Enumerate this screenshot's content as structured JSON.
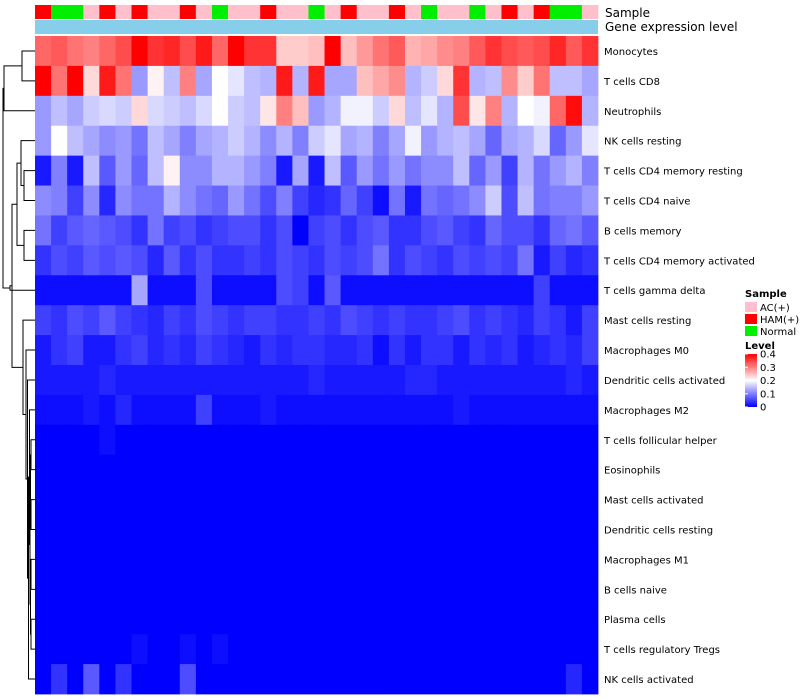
{
  "chart_data": {
    "type": "heatmap",
    "title": "",
    "annotation_labels": {
      "sample": "Sample",
      "gene_expression": "Gene expression level"
    },
    "legend": {
      "sample_title": "Sample",
      "sample_entries": [
        {
          "label": "AC(+)",
          "color": "#ffc0cb"
        },
        {
          "label": "HAM(+)",
          "color": "#ff0000"
        },
        {
          "label": "Normal",
          "color": "#00ee00"
        }
      ],
      "level_title": "Level",
      "level_ticks": [
        "0.4",
        "0.3",
        "0.2",
        "0.1",
        "0"
      ],
      "level_range": [
        0,
        0.4
      ]
    },
    "colors": {
      "low": "#0000ff",
      "mid": "#ffffff",
      "high": "#ff0000",
      "gene_expression_bar": "#87ceeb"
    },
    "sample_groups": [
      "HAM(+)",
      "Normal",
      "Normal",
      "AC(+)",
      "HAM(+)",
      "AC(+)",
      "HAM(+)",
      "AC(+)",
      "AC(+)",
      "HAM(+)",
      "AC(+)",
      "Normal",
      "AC(+)",
      "AC(+)",
      "HAM(+)",
      "AC(+)",
      "AC(+)",
      "Normal",
      "AC(+)",
      "HAM(+)",
      "AC(+)",
      "AC(+)",
      "HAM(+)",
      "AC(+)",
      "Normal",
      "AC(+)",
      "AC(+)",
      "Normal",
      "AC(+)",
      "HAM(+)",
      "AC(+)",
      "HAM(+)",
      "Normal",
      "Normal",
      "AC(+)"
    ],
    "rows": [
      "Monocytes",
      "T cells CD8",
      "Neutrophils",
      "NK cells resting",
      "T cells CD4 memory resting",
      "T cells CD4 naive",
      "B cells memory",
      "T cells CD4 memory activated",
      "T cells gamma delta",
      "Mast cells resting",
      "Macrophages M0",
      "Dendritic cells activated",
      "Macrophages M2",
      "T cells follicular helper",
      "Eosinophils",
      "Mast cells activated",
      "Dendritic cells resting",
      "Macrophages M1",
      "B cells naive",
      "Plasma cells",
      "T cells regulatory  Tregs",
      "NK cells activated"
    ],
    "values": [
      [
        0.32,
        0.33,
        0.31,
        0.3,
        0.32,
        0.34,
        0.4,
        0.36,
        0.37,
        0.34,
        0.38,
        0.32,
        0.41,
        0.36,
        0.36,
        0.24,
        0.24,
        0.25,
        0.4,
        0.25,
        0.28,
        0.31,
        0.33,
        0.26,
        0.27,
        0.29,
        0.3,
        0.33,
        0.36,
        0.34,
        0.33,
        0.34,
        0.37,
        0.33,
        0.36
      ],
      [
        0.4,
        0.31,
        0.4,
        0.23,
        0.38,
        0.31,
        0.12,
        0.21,
        0.15,
        0.3,
        0.13,
        0.2,
        0.18,
        0.15,
        0.14,
        0.38,
        0.14,
        0.38,
        0.13,
        0.13,
        0.25,
        0.27,
        0.29,
        0.14,
        0.16,
        0.23,
        0.36,
        0.14,
        0.15,
        0.29,
        0.24,
        0.31,
        0.15,
        0.15,
        0.13
      ],
      [
        0.12,
        0.15,
        0.13,
        0.16,
        0.17,
        0.16,
        0.23,
        0.17,
        0.16,
        0.15,
        0.17,
        0.2,
        0.16,
        0.15,
        0.22,
        0.3,
        0.25,
        0.12,
        0.14,
        0.19,
        0.19,
        0.16,
        0.23,
        0.15,
        0.18,
        0.14,
        0.34,
        0.22,
        0.3,
        0.14,
        0.2,
        0.19,
        0.32,
        0.39,
        0.14
      ],
      [
        0.12,
        0.2,
        0.15,
        0.13,
        0.11,
        0.12,
        0.09,
        0.15,
        0.13,
        0.1,
        0.13,
        0.14,
        0.16,
        0.14,
        0.11,
        0.14,
        0.1,
        0.16,
        0.18,
        0.13,
        0.14,
        0.1,
        0.13,
        0.19,
        0.12,
        0.14,
        0.15,
        0.13,
        0.08,
        0.13,
        0.14,
        0.17,
        0.08,
        0.12,
        0.18
      ],
      [
        0.02,
        0.1,
        0.02,
        0.15,
        0.07,
        0.12,
        0.08,
        0.15,
        0.21,
        0.11,
        0.11,
        0.14,
        0.14,
        0.12,
        0.1,
        0.02,
        0.13,
        0.02,
        0.15,
        0.07,
        0.12,
        0.09,
        0.12,
        0.09,
        0.11,
        0.11,
        0.15,
        0.08,
        0.12,
        0.05,
        0.14,
        0.09,
        0.12,
        0.14,
        0.1
      ],
      [
        0.11,
        0.1,
        0.05,
        0.11,
        0.03,
        0.11,
        0.09,
        0.09,
        0.14,
        0.11,
        0.09,
        0.08,
        0.12,
        0.09,
        0.06,
        0.1,
        0.05,
        0.03,
        0.04,
        0.08,
        0.05,
        0.01,
        0.09,
        0.02,
        0.09,
        0.08,
        0.09,
        0.11,
        0.16,
        0.06,
        0.15,
        0.09,
        0.1,
        0.1,
        0.12
      ],
      [
        0.09,
        0.05,
        0.07,
        0.08,
        0.07,
        0.06,
        0.04,
        0.09,
        0.05,
        0.06,
        0.04,
        0.05,
        0.06,
        0.06,
        0.04,
        0.06,
        0.0,
        0.05,
        0.06,
        0.04,
        0.06,
        0.07,
        0.04,
        0.04,
        0.06,
        0.07,
        0.05,
        0.04,
        0.08,
        0.06,
        0.06,
        0.04,
        0.08,
        0.09,
        0.07
      ],
      [
        0.04,
        0.06,
        0.05,
        0.07,
        0.06,
        0.07,
        0.06,
        0.03,
        0.07,
        0.04,
        0.06,
        0.04,
        0.04,
        0.05,
        0.04,
        0.06,
        0.05,
        0.04,
        0.06,
        0.05,
        0.06,
        0.09,
        0.04,
        0.06,
        0.05,
        0.04,
        0.06,
        0.05,
        0.06,
        0.05,
        0.09,
        0.02,
        0.05,
        0.03,
        0.04
      ],
      [
        0.01,
        0.01,
        0.01,
        0.01,
        0.01,
        0.01,
        0.13,
        0.01,
        0.01,
        0.01,
        0.06,
        0.01,
        0.01,
        0.01,
        0.01,
        0.06,
        0.05,
        0.01,
        0.07,
        0.01,
        0.01,
        0.01,
        0.01,
        0.01,
        0.01,
        0.01,
        0.01,
        0.01,
        0.01,
        0.01,
        0.01,
        0.05,
        0.01,
        0.01,
        0.01
      ],
      [
        0.05,
        0.04,
        0.06,
        0.05,
        0.07,
        0.05,
        0.04,
        0.03,
        0.05,
        0.04,
        0.06,
        0.05,
        0.04,
        0.05,
        0.05,
        0.04,
        0.04,
        0.05,
        0.04,
        0.06,
        0.05,
        0.04,
        0.05,
        0.04,
        0.04,
        0.05,
        0.06,
        0.04,
        0.05,
        0.04,
        0.03,
        0.05,
        0.04,
        0.02,
        0.05
      ],
      [
        0.02,
        0.04,
        0.05,
        0.02,
        0.02,
        0.04,
        0.05,
        0.03,
        0.04,
        0.03,
        0.05,
        0.04,
        0.03,
        0.02,
        0.04,
        0.03,
        0.04,
        0.04,
        0.03,
        0.03,
        0.04,
        0.01,
        0.04,
        0.02,
        0.04,
        0.04,
        0.02,
        0.04,
        0.03,
        0.04,
        0.02,
        0.03,
        0.04,
        0.03,
        0.05
      ],
      [
        0.02,
        0.02,
        0.02,
        0.02,
        0.03,
        0.02,
        0.02,
        0.02,
        0.02,
        0.02,
        0.02,
        0.02,
        0.02,
        0.02,
        0.02,
        0.02,
        0.02,
        0.03,
        0.02,
        0.02,
        0.02,
        0.02,
        0.02,
        0.03,
        0.03,
        0.02,
        0.02,
        0.02,
        0.02,
        0.02,
        0.02,
        0.02,
        0.02,
        0.03,
        0.02
      ],
      [
        0.01,
        0.01,
        0.01,
        0.02,
        0.01,
        0.03,
        0.01,
        0.01,
        0.01,
        0.01,
        0.05,
        0.01,
        0.01,
        0.01,
        0.02,
        0.01,
        0.01,
        0.01,
        0.01,
        0.01,
        0.01,
        0.01,
        0.01,
        0.01,
        0.01,
        0.01,
        0.02,
        0.01,
        0.01,
        0.01,
        0.01,
        0.01,
        0.01,
        0.01,
        0.01
      ],
      [
        0.0,
        0.0,
        0.0,
        0.0,
        0.01,
        0.0,
        0.0,
        0.0,
        0.0,
        0.0,
        0.0,
        0.0,
        0.0,
        0.0,
        0.0,
        0.0,
        0.0,
        0.0,
        0.0,
        0.0,
        0.0,
        0.0,
        0.0,
        0.0,
        0.0,
        0.0,
        0.0,
        0.0,
        0.0,
        0.0,
        0.0,
        0.0,
        0.0,
        0.0,
        0.0
      ],
      [
        0.0,
        0.0,
        0.0,
        0.0,
        0.0,
        0.0,
        0.0,
        0.0,
        0.0,
        0.0,
        0.0,
        0.0,
        0.0,
        0.0,
        0.0,
        0.0,
        0.0,
        0.0,
        0.0,
        0.0,
        0.0,
        0.0,
        0.0,
        0.0,
        0.0,
        0.0,
        0.0,
        0.0,
        0.0,
        0.0,
        0.0,
        0.0,
        0.0,
        0.0,
        0.0
      ],
      [
        0.0,
        0.0,
        0.0,
        0.0,
        0.0,
        0.0,
        0.0,
        0.0,
        0.0,
        0.0,
        0.0,
        0.0,
        0.0,
        0.0,
        0.0,
        0.0,
        0.0,
        0.0,
        0.0,
        0.0,
        0.0,
        0.0,
        0.0,
        0.0,
        0.0,
        0.0,
        0.0,
        0.0,
        0.0,
        0.0,
        0.0,
        0.0,
        0.0,
        0.0,
        0.0
      ],
      [
        0.0,
        0.0,
        0.0,
        0.0,
        0.0,
        0.0,
        0.0,
        0.0,
        0.0,
        0.0,
        0.0,
        0.0,
        0.0,
        0.0,
        0.0,
        0.0,
        0.0,
        0.0,
        0.0,
        0.0,
        0.0,
        0.0,
        0.0,
        0.0,
        0.0,
        0.0,
        0.0,
        0.0,
        0.0,
        0.0,
        0.0,
        0.0,
        0.0,
        0.0,
        0.0
      ],
      [
        0.0,
        0.0,
        0.0,
        0.0,
        0.0,
        0.0,
        0.0,
        0.0,
        0.0,
        0.0,
        0.0,
        0.0,
        0.0,
        0.0,
        0.0,
        0.0,
        0.0,
        0.0,
        0.0,
        0.0,
        0.0,
        0.0,
        0.0,
        0.0,
        0.0,
        0.0,
        0.0,
        0.0,
        0.0,
        0.0,
        0.0,
        0.0,
        0.0,
        0.0,
        0.0
      ],
      [
        0.0,
        0.0,
        0.0,
        0.0,
        0.0,
        0.0,
        0.0,
        0.0,
        0.0,
        0.0,
        0.0,
        0.0,
        0.0,
        0.0,
        0.0,
        0.0,
        0.0,
        0.0,
        0.0,
        0.0,
        0.0,
        0.0,
        0.0,
        0.0,
        0.0,
        0.0,
        0.0,
        0.0,
        0.0,
        0.0,
        0.0,
        0.0,
        0.0,
        0.0,
        0.0
      ],
      [
        0.0,
        0.0,
        0.0,
        0.0,
        0.0,
        0.0,
        0.0,
        0.0,
        0.0,
        0.0,
        0.0,
        0.0,
        0.0,
        0.0,
        0.0,
        0.0,
        0.0,
        0.0,
        0.0,
        0.0,
        0.0,
        0.0,
        0.0,
        0.0,
        0.0,
        0.0,
        0.0,
        0.0,
        0.0,
        0.0,
        0.0,
        0.0,
        0.0,
        0.0,
        0.0
      ],
      [
        0.0,
        0.0,
        0.0,
        0.0,
        0.0,
        0.0,
        0.01,
        0.0,
        0.0,
        0.01,
        0.0,
        0.01,
        0.0,
        0.0,
        0.0,
        0.0,
        0.0,
        0.0,
        0.0,
        0.0,
        0.0,
        0.0,
        0.0,
        0.0,
        0.0,
        0.0,
        0.0,
        0.0,
        0.0,
        0.0,
        0.0,
        0.0,
        0.0,
        0.0,
        0.0
      ],
      [
        0.0,
        0.04,
        0.0,
        0.07,
        0.0,
        0.04,
        0.0,
        0.0,
        0.0,
        0.06,
        0.0,
        0.0,
        0.0,
        0.0,
        0.0,
        0.0,
        0.0,
        0.0,
        0.0,
        0.0,
        0.0,
        0.0,
        0.0,
        0.0,
        0.0,
        0.0,
        0.0,
        0.0,
        0.0,
        0.0,
        0.0,
        0.0,
        0.0,
        0.03,
        0.0
      ]
    ]
  }
}
